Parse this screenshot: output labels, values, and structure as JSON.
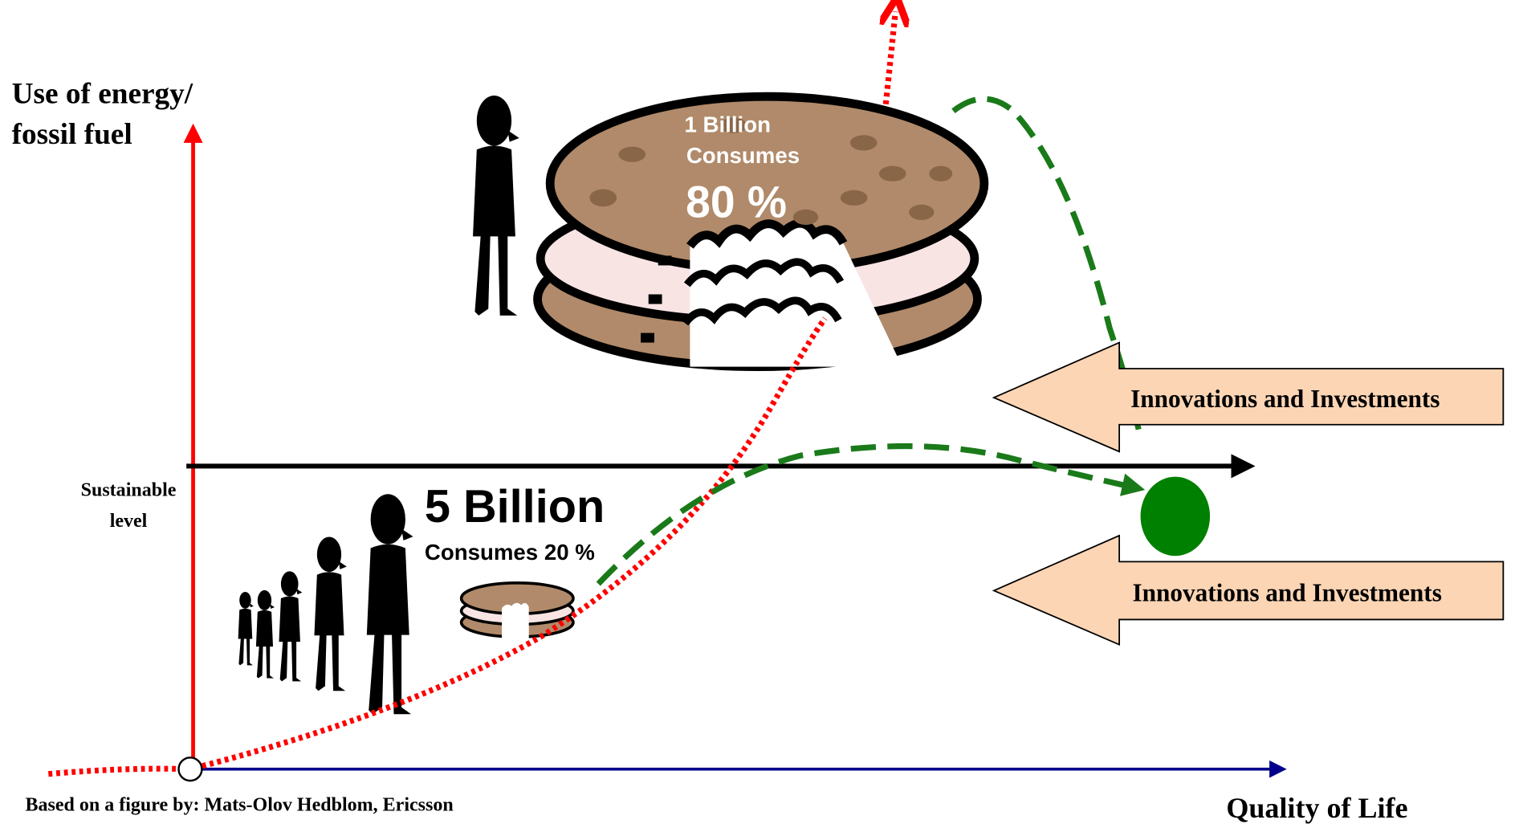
{
  "y_axis_label": [
    "Use of energy/",
    "fossil fuel"
  ],
  "x_axis_label": "Quality of Life",
  "sustainable_level": [
    "Sustainable",
    "level"
  ],
  "rich": {
    "population": "1 Billion",
    "verb": "Consumes",
    "share": "80 %"
  },
  "poor": {
    "population": "5 Billion",
    "share": "Consumes 20 %"
  },
  "arrows": [
    "Innovations and Investments",
    "Innovations and Investments"
  ],
  "source": "Based on a figure by:  Mats-Olov Hedblom, Ericsson"
}
